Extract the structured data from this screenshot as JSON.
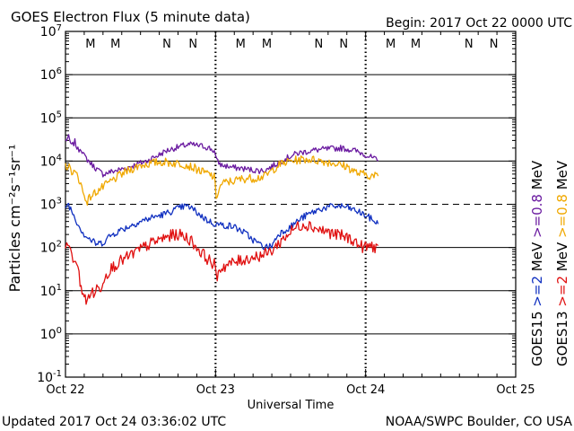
{
  "header": {
    "title": "GOES Electron Flux (5 minute data)",
    "begin": "Begin: 2017 Oct 22 0000 UTC"
  },
  "footer": {
    "updated": "Updated 2017 Oct 24 03:36:02 UTC",
    "source": "NOAA/SWPC Boulder, CO USA"
  },
  "colors": {
    "background": "#ffffff",
    "axis": "#000000",
    "goes13_high": "#f0a800",
    "goes13_low": "#e01010",
    "goes15_high": "#6a1aa0",
    "goes15_low": "#1030c0",
    "marker_m": "#c00000",
    "marker_n_red": "#c00000",
    "marker_n_blue": "#1a3ab0"
  },
  "chart_data": {
    "type": "line",
    "xlabel": "Universal Time",
    "ylabel": "Particles cm⁻²s⁻¹sr⁻¹",
    "xlim": [
      0,
      72
    ],
    "x_units": "hours since 2017 Oct 22 0000 UTC",
    "x_tick_labels": [
      {
        "x": 0,
        "label": "Oct 22"
      },
      {
        "x": 24,
        "label": "Oct 23"
      },
      {
        "x": 48,
        "label": "Oct 24"
      },
      {
        "x": 72,
        "label": "Oct 25"
      }
    ],
    "yscale": "log",
    "ylim": [
      0.1,
      10000000
    ],
    "y_tick_labels": [
      {
        "exp": 7,
        "base": "10",
        "sup": "7"
      },
      {
        "exp": 6,
        "base": "10",
        "sup": "6"
      },
      {
        "exp": 5,
        "base": "10",
        "sup": "5"
      },
      {
        "exp": 4,
        "base": "10",
        "sup": "4"
      },
      {
        "exp": 3,
        "base": "10",
        "sup": "3"
      },
      {
        "exp": 2,
        "base": "10",
        "sup": "2"
      },
      {
        "exp": 1,
        "base": "10",
        "sup": "1"
      },
      {
        "exp": 0,
        "base": "10",
        "sup": "0"
      },
      {
        "exp": -1,
        "base": "10",
        "sup": "-1"
      }
    ],
    "solid_gridlines": [
      6,
      5,
      4,
      2,
      1,
      0
    ],
    "dashed_gridlines": [
      3
    ],
    "day_boundaries": [
      24,
      48
    ],
    "markers": [
      {
        "x": 4.0,
        "label": "M",
        "color": "#c00000"
      },
      {
        "x": 8.0,
        "label": "M",
        "color": "#1a3ab0"
      },
      {
        "x": 16.2,
        "label": "N",
        "color": "#c00000"
      },
      {
        "x": 20.4,
        "label": "N",
        "color": "#1a3ab0"
      },
      {
        "x": 28.0,
        "label": "M",
        "color": "#c00000"
      },
      {
        "x": 32.2,
        "label": "M",
        "color": "#1a3ab0"
      },
      {
        "x": 40.5,
        "label": "N",
        "color": "#c00000"
      },
      {
        "x": 44.5,
        "label": "N",
        "color": "#1a3ab0"
      },
      {
        "x": 52.0,
        "label": "M",
        "color": "#c00000"
      },
      {
        "x": 56.0,
        "label": "M",
        "color": "#1a3ab0"
      },
      {
        "x": 64.5,
        "label": "N",
        "color": "#c00000"
      },
      {
        "x": 68.5,
        "label": "N",
        "color": "#1a3ab0"
      }
    ],
    "legend": {
      "placement": "right",
      "columns": [
        {
          "sat": "GOES13",
          "low": ">=2",
          "high": ">=0.8",
          "unit": "MeV",
          "low_color": "#e01010",
          "high_color": "#f0a800"
        },
        {
          "sat": "GOES15",
          "low": ">=2",
          "high": ">=0.8",
          "unit": "MeV",
          "low_color": "#1030c0",
          "high_color": "#6a1aa0"
        }
      ]
    },
    "series": [
      {
        "name": "GOES15 >=0.8 MeV",
        "color": "#6a1aa0",
        "noise": 0.07,
        "points": [
          [
            0,
            30000
          ],
          [
            0.5,
            35000
          ],
          [
            1,
            22000
          ],
          [
            1.5,
            28000
          ],
          [
            2,
            18000
          ],
          [
            2.5,
            20000
          ],
          [
            3,
            13000
          ],
          [
            4,
            9000
          ],
          [
            5,
            6500
          ],
          [
            6,
            5000
          ],
          [
            7,
            5500
          ],
          [
            8,
            6000
          ],
          [
            9,
            6500
          ],
          [
            10,
            7200
          ],
          [
            11,
            8000
          ],
          [
            12,
            9000
          ],
          [
            13,
            10000
          ],
          [
            14,
            12000
          ],
          [
            15,
            14000
          ],
          [
            16,
            17000
          ],
          [
            17,
            19000
          ],
          [
            18,
            21000
          ],
          [
            19,
            23000
          ],
          [
            20,
            24000
          ],
          [
            21,
            23000
          ],
          [
            22,
            22000
          ],
          [
            23,
            20000
          ],
          [
            23.8,
            17000
          ],
          [
            24.2,
            10000
          ],
          [
            25,
            8000
          ],
          [
            26,
            7500
          ],
          [
            27,
            7000
          ],
          [
            28,
            6800
          ],
          [
            29,
            6500
          ],
          [
            30,
            6200
          ],
          [
            31,
            6000
          ],
          [
            32,
            6200
          ],
          [
            33,
            7500
          ],
          [
            34,
            9000
          ],
          [
            35,
            11000
          ],
          [
            36,
            13000
          ],
          [
            37,
            15000
          ],
          [
            38,
            16000
          ],
          [
            39,
            17000
          ],
          [
            40,
            18000
          ],
          [
            41,
            18500
          ],
          [
            42,
            19000
          ],
          [
            43,
            19500
          ],
          [
            44,
            20000
          ],
          [
            45,
            19000
          ],
          [
            46,
            18000
          ],
          [
            47,
            16000
          ],
          [
            48,
            14000
          ],
          [
            49,
            12000
          ],
          [
            50,
            10000
          ]
        ]
      },
      {
        "name": "GOES13 >=0.8 MeV",
        "color": "#f0a800",
        "noise": 0.1,
        "points": [
          [
            0,
            8000
          ],
          [
            0.6,
            7000
          ],
          [
            1,
            6000
          ],
          [
            2,
            4500
          ],
          [
            2.6,
            2500
          ],
          [
            3,
            1500
          ],
          [
            3.5,
            1200
          ],
          [
            4,
            1500
          ],
          [
            5,
            2000
          ],
          [
            6,
            2500
          ],
          [
            7,
            3200
          ],
          [
            8,
            4000
          ],
          [
            9,
            5000
          ],
          [
            10,
            6000
          ],
          [
            11,
            7000
          ],
          [
            12,
            8000
          ],
          [
            13,
            8500
          ],
          [
            14,
            9000
          ],
          [
            15,
            9500
          ],
          [
            16,
            9500
          ],
          [
            17,
            9000
          ],
          [
            18,
            8800
          ],
          [
            19,
            8500
          ],
          [
            20,
            7500
          ],
          [
            21,
            6500
          ],
          [
            22,
            5500
          ],
          [
            23,
            5000
          ],
          [
            23.8,
            4200
          ],
          [
            24.1,
            1500
          ],
          [
            24.6,
            2200
          ],
          [
            25,
            3000
          ],
          [
            26,
            3300
          ],
          [
            27,
            3500
          ],
          [
            28,
            3800
          ],
          [
            29,
            4000
          ],
          [
            30,
            4000
          ],
          [
            31,
            4200
          ],
          [
            32,
            4500
          ],
          [
            33,
            6000
          ],
          [
            34,
            8000
          ],
          [
            35,
            9000
          ],
          [
            36,
            10000
          ],
          [
            37,
            10500
          ],
          [
            38,
            11000
          ],
          [
            39,
            11000
          ],
          [
            40,
            10500
          ],
          [
            41,
            10000
          ],
          [
            42,
            9500
          ],
          [
            43,
            9000
          ],
          [
            44,
            8000
          ],
          [
            45,
            7500
          ],
          [
            46,
            6000
          ],
          [
            47,
            5000
          ],
          [
            48,
            5000
          ],
          [
            49,
            4500
          ],
          [
            50,
            4500
          ]
        ]
      },
      {
        "name": "GOES15 >=2 MeV",
        "color": "#1030c0",
        "noise": 0.08,
        "points": [
          [
            0,
            900
          ],
          [
            0.5,
            1000
          ],
          [
            1,
            700
          ],
          [
            1.5,
            500
          ],
          [
            2,
            350
          ],
          [
            2.6,
            250
          ],
          [
            3,
            200
          ],
          [
            4,
            150
          ],
          [
            5,
            120
          ],
          [
            6,
            130
          ],
          [
            7,
            180
          ],
          [
            8,
            220
          ],
          [
            9,
            260
          ],
          [
            10,
            300
          ],
          [
            11,
            350
          ],
          [
            12,
            400
          ],
          [
            13,
            450
          ],
          [
            14,
            500
          ],
          [
            15,
            550
          ],
          [
            16,
            600
          ],
          [
            17,
            700
          ],
          [
            18,
            800
          ],
          [
            19,
            900
          ],
          [
            20,
            850
          ],
          [
            21,
            650
          ],
          [
            22,
            500
          ],
          [
            23,
            400
          ],
          [
            24,
            350
          ],
          [
            25,
            330
          ],
          [
            26,
            320
          ],
          [
            27,
            300
          ],
          [
            28,
            250
          ],
          [
            29,
            200
          ],
          [
            30,
            150
          ],
          [
            31,
            120
          ],
          [
            32,
            100
          ],
          [
            33,
            110
          ],
          [
            34,
            200
          ],
          [
            35,
            250
          ],
          [
            36,
            300
          ],
          [
            37,
            400
          ],
          [
            38,
            500
          ],
          [
            39,
            600
          ],
          [
            40,
            700
          ],
          [
            41,
            800
          ],
          [
            42,
            850
          ],
          [
            43,
            900
          ],
          [
            44,
            900
          ],
          [
            45,
            850
          ],
          [
            46,
            750
          ],
          [
            47,
            650
          ],
          [
            48,
            550
          ],
          [
            49,
            450
          ],
          [
            50,
            350
          ]
        ]
      },
      {
        "name": "GOES13 >=2 MeV",
        "color": "#e01010",
        "noise": 0.14,
        "points": [
          [
            0,
            100
          ],
          [
            0.4,
            150
          ],
          [
            0.8,
            80
          ],
          [
            1.2,
            40
          ],
          [
            1.6,
            60
          ],
          [
            2,
            30
          ],
          [
            2.5,
            12
          ],
          [
            3,
            8
          ],
          [
            3.3,
            5
          ],
          [
            3.7,
            7
          ],
          [
            4,
            10
          ],
          [
            4.5,
            8
          ],
          [
            5,
            12
          ],
          [
            5.5,
            10
          ],
          [
            6,
            18
          ],
          [
            7,
            30
          ],
          [
            8,
            40
          ],
          [
            9,
            50
          ],
          [
            10,
            60
          ],
          [
            11,
            75
          ],
          [
            12,
            90
          ],
          [
            13,
            110
          ],
          [
            14,
            130
          ],
          [
            15,
            150
          ],
          [
            16,
            170
          ],
          [
            17,
            190
          ],
          [
            18,
            200
          ],
          [
            19,
            180
          ],
          [
            20,
            150
          ],
          [
            21,
            100
          ],
          [
            22,
            70
          ],
          [
            23,
            50
          ],
          [
            23.8,
            40
          ],
          [
            24.1,
            20
          ],
          [
            24.6,
            30
          ],
          [
            25,
            35
          ],
          [
            26,
            40
          ],
          [
            27,
            45
          ],
          [
            28,
            50
          ],
          [
            29,
            55
          ],
          [
            30,
            60
          ],
          [
            31,
            65
          ],
          [
            32,
            70
          ],
          [
            33,
            85
          ],
          [
            34,
            120
          ],
          [
            35,
            170
          ],
          [
            36,
            230
          ],
          [
            37,
            300
          ],
          [
            38,
            350
          ],
          [
            39,
            330
          ],
          [
            40,
            280
          ],
          [
            41,
            250
          ],
          [
            42,
            230
          ],
          [
            43,
            200
          ],
          [
            44,
            190
          ],
          [
            45,
            170
          ],
          [
            46,
            150
          ],
          [
            47,
            110
          ],
          [
            48,
            100
          ],
          [
            49,
            110
          ],
          [
            49.5,
            100
          ],
          [
            50,
            110
          ]
        ]
      }
    ]
  }
}
